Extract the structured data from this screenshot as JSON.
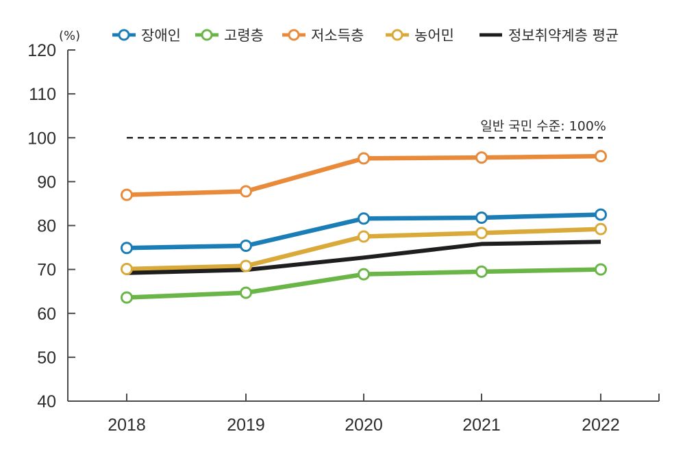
{
  "chart_data": {
    "type": "line",
    "title": "",
    "unit_label": "(%)",
    "xlabel": "",
    "ylabel": "(%)",
    "x": [
      "2018",
      "2019",
      "2020",
      "2021",
      "2022"
    ],
    "ylim": [
      40,
      120
    ],
    "yticks": [
      40,
      50,
      60,
      70,
      80,
      90,
      100,
      110,
      120
    ],
    "grid": false,
    "legend_position": "top",
    "series": [
      {
        "name": "장애인",
        "color": "#1a7db5",
        "marker": "open-circle",
        "values": [
          74.9,
          75.4,
          81.6,
          81.8,
          82.5
        ]
      },
      {
        "name": "고령층",
        "color": "#6ab547",
        "marker": "open-circle",
        "values": [
          63.6,
          64.7,
          68.9,
          69.5,
          70.0
        ]
      },
      {
        "name": "저소득층",
        "color": "#e88a3a",
        "marker": "open-circle",
        "values": [
          87.0,
          87.8,
          95.3,
          95.5,
          95.8
        ]
      },
      {
        "name": "농어민",
        "color": "#d9a93a",
        "marker": "open-circle",
        "values": [
          70.1,
          70.8,
          77.5,
          78.3,
          79.2
        ]
      },
      {
        "name": "정보취약계층 평균",
        "color": "#1e1e1e",
        "marker": "none",
        "values": [
          69.2,
          69.9,
          72.7,
          75.8,
          76.3
        ]
      }
    ],
    "reference_line": {
      "value": 100,
      "label": "일반 국민 수준: 100%",
      "style": "dashed",
      "color": "#222222"
    }
  }
}
